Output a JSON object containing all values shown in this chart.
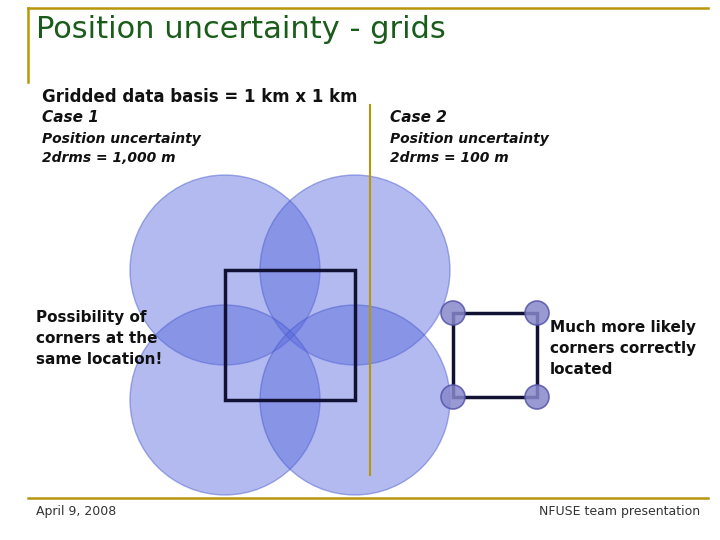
{
  "title": "Position uncertainty - grids",
  "subtitle": "Gridded data basis = 1 km x 1 km",
  "title_color": "#1a5c1a",
  "title_bar_color": "#b8960c",
  "background_color": "#ffffff",
  "case1_label": "Case 1",
  "case1_uncertainty": "Position uncertainty\n2drms = 1,000 m",
  "case1_note": "Possibility of\ncorners at the\nsame location!",
  "case2_label": "Case 2",
  "case2_uncertainty": "Position uncertainty\n2drms = 100 m",
  "case2_note": "Much more likely\ncorners correctly\nlocated",
  "circle_color": "#5566dd",
  "circle_alpha": 0.45,
  "circle_edge_color": "#4455cc",
  "dot_color": "#8888cc",
  "dot_edge_color": "#5555aa",
  "square_color": "#111133",
  "footer_left": "April 9, 2008",
  "footer_right": "NFUSE team presentation",
  "divider_color": "#b8960c",
  "bar_color": "#b8960c"
}
